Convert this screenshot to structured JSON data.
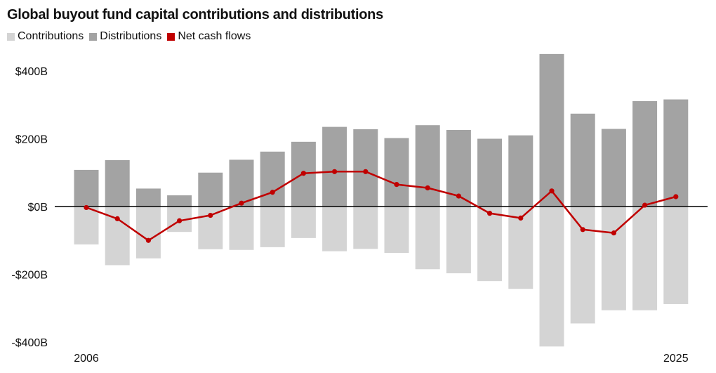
{
  "colors": {
    "contributions": "#d4d4d4",
    "distributions": "#a3a3a3",
    "net": "#c00000",
    "axis": "#000000"
  },
  "chart_data": {
    "type": "bar",
    "title": "Global buyout fund capital contributions and distributions",
    "legend": [
      {
        "key": "contributions",
        "label": "Contributions"
      },
      {
        "key": "distributions",
        "label": "Distributions"
      },
      {
        "key": "net",
        "label": "Net cash flows"
      }
    ],
    "categories": [
      "2006",
      "2007",
      "2008",
      "2009",
      "2010",
      "2011",
      "2012",
      "2013",
      "2014",
      "2015",
      "2016",
      "2017",
      "2018",
      "2019",
      "2020",
      "2021",
      "2022",
      "2023",
      "2024",
      "2025"
    ],
    "x_tick_labels": [
      {
        "index": 0,
        "label": "2006"
      },
      {
        "index": 19,
        "label": "2025"
      }
    ],
    "ylim": [
      -400,
      400
    ],
    "y_ticks": [
      {
        "value": 400,
        "label": "$400B"
      },
      {
        "value": 200,
        "label": "$200B"
      },
      {
        "value": 0,
        "label": "$0B"
      },
      {
        "value": -200,
        "label": "-$200B"
      },
      {
        "value": -400,
        "label": "-$400B"
      }
    ],
    "series": [
      {
        "name": "Distributions",
        "key": "distributions",
        "chart": "bar",
        "values": [
          108,
          137,
          53,
          33,
          100,
          138,
          162,
          191,
          235,
          228,
          202,
          240,
          226,
          200,
          210,
          450,
          274,
          229,
          311,
          316
        ]
      },
      {
        "name": "Contributions",
        "key": "contributions",
        "chart": "bar",
        "values": [
          -112,
          -173,
          -153,
          -75,
          -126,
          -128,
          -120,
          -93,
          -132,
          -125,
          -137,
          -185,
          -197,
          -220,
          -243,
          -413,
          -345,
          -306,
          -306,
          -288
        ]
      },
      {
        "name": "Net cash flows",
        "key": "net",
        "chart": "line",
        "values": [
          -3,
          -36,
          -100,
          -42,
          -26,
          10,
          42,
          98,
          103,
          103,
          65,
          55,
          31,
          -20,
          -34,
          46,
          -68,
          -78,
          4,
          29
        ]
      }
    ]
  }
}
